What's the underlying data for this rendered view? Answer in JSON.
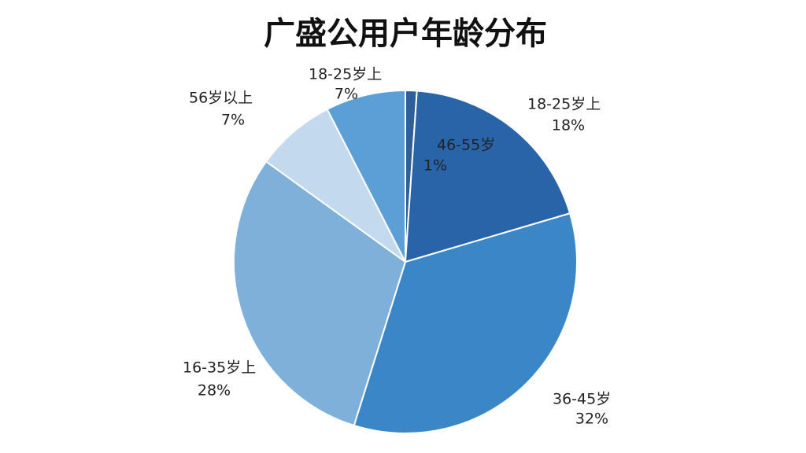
{
  "chart_data": {
    "type": "pie",
    "title": "广盛公用户年龄分布",
    "categories": [
      "46-55岁",
      "18-25岁上",
      "36-45岁",
      "16-35岁上",
      "56岁以上",
      "18-25岁上"
    ],
    "values": [
      1,
      18,
      32,
      28,
      7,
      7
    ],
    "value_labels": [
      "1%",
      "18%",
      "32%",
      "28%",
      "7%",
      "7%"
    ],
    "colors": [
      "#2f5f9a",
      "#2a64a8",
      "#3a86c6",
      "#7eb0da",
      "#c2d9ee",
      "#5b9fd6"
    ]
  }
}
